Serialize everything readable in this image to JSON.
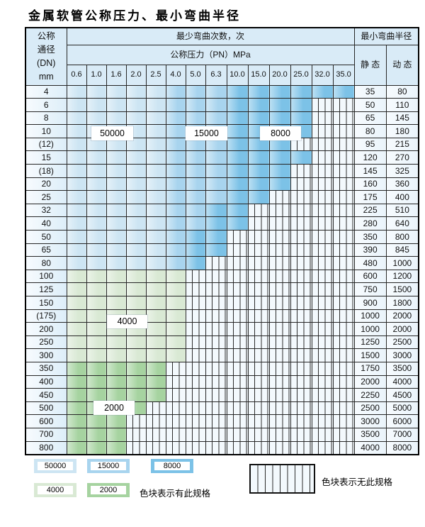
{
  "title": "金属软管公称压力、最小弯曲半径",
  "colors": {
    "c50": "#cde5f3",
    "c15": "#a8d4ee",
    "c8": "#7cc2e7",
    "c4": "#d9e9d4",
    "c2": "#a6d3a0",
    "hatch_bg": "#f3f9fd",
    "hatch_line": "#2b2b2b",
    "header_bg": "#d9ebf7"
  },
  "table": {
    "header": {
      "dn_lines": [
        "公称",
        "通径",
        "(DN)",
        "mm"
      ],
      "cycles_title": "最少弯曲次数，次",
      "pressure_title": "公称压力（PN）MPa",
      "pressures": [
        "0.6",
        "1.0",
        "1.6",
        "2.0",
        "2.5",
        "4.0",
        "5.0",
        "6.3",
        "10.0",
        "15.0",
        "20.0",
        "25.0",
        "32.0",
        "35.0"
      ],
      "radius_title": "最小弯曲半径",
      "static_label": "静 态",
      "dynamic_label": "动 态"
    },
    "band_meaning": {
      "50": "最少弯曲次数 50000 次",
      "15": "最少弯曲次数 15000 次",
      "8": "最少弯曲次数 8000 次",
      "4": "最少弯曲次数 4000 次",
      "2": "最少弯曲次数 2000 次",
      "x": "无此规格"
    },
    "rows": [
      {
        "dn": "4",
        "static": "35",
        "dynamic": "80",
        "bands": [
          "50",
          "50",
          "50",
          "50",
          "50",
          "15",
          "15",
          "15",
          "8",
          "8",
          "8",
          "8",
          "8",
          "8"
        ]
      },
      {
        "dn": "6",
        "static": "50",
        "dynamic": "110",
        "bands": [
          "50",
          "50",
          "50",
          "50",
          "50",
          "15",
          "15",
          "15",
          "8",
          "8",
          "8",
          "8",
          "x",
          "x"
        ]
      },
      {
        "dn": "8",
        "static": "65",
        "dynamic": "145",
        "bands": [
          "50",
          "50",
          "50",
          "50",
          "50",
          "15",
          "15",
          "15",
          "8",
          "8",
          "8",
          "8",
          "x",
          "x"
        ]
      },
      {
        "dn": "10",
        "static": "80",
        "dynamic": "180",
        "bands": [
          "50",
          "50",
          "50",
          "50",
          "50",
          "15",
          "15",
          "15",
          "8",
          "8",
          "8",
          "8",
          "x",
          "x"
        ]
      },
      {
        "dn": "(12)",
        "static": "95",
        "dynamic": "215",
        "bands": [
          "50",
          "50",
          "50",
          "50",
          "50",
          "15",
          "15",
          "15",
          "8",
          "8",
          "8",
          "x",
          "x",
          "x"
        ]
      },
      {
        "dn": "15",
        "static": "120",
        "dynamic": "270",
        "bands": [
          "50",
          "50",
          "50",
          "50",
          "50",
          "15",
          "15",
          "15",
          "8",
          "8",
          "8",
          "8",
          "x",
          "x"
        ]
      },
      {
        "dn": "(18)",
        "static": "145",
        "dynamic": "325",
        "bands": [
          "50",
          "50",
          "50",
          "50",
          "50",
          "15",
          "15",
          "15",
          "8",
          "8",
          "8",
          "x",
          "x",
          "x"
        ]
      },
      {
        "dn": "20",
        "static": "160",
        "dynamic": "360",
        "bands": [
          "50",
          "50",
          "50",
          "50",
          "50",
          "15",
          "15",
          "15",
          "8",
          "8",
          "8",
          "x",
          "x",
          "x"
        ]
      },
      {
        "dn": "25",
        "static": "175",
        "dynamic": "400",
        "bands": [
          "50",
          "50",
          "50",
          "50",
          "50",
          "15",
          "15",
          "15",
          "8",
          "8",
          "x",
          "x",
          "x",
          "x"
        ]
      },
      {
        "dn": "32",
        "static": "225",
        "dynamic": "510",
        "bands": [
          "50",
          "50",
          "50",
          "50",
          "50",
          "15",
          "15",
          "8",
          "8",
          "x",
          "x",
          "x",
          "x",
          "x"
        ]
      },
      {
        "dn": "40",
        "static": "280",
        "dynamic": "640",
        "bands": [
          "50",
          "50",
          "50",
          "50",
          "50",
          "15",
          "15",
          "8",
          "8",
          "x",
          "x",
          "x",
          "x",
          "x"
        ]
      },
      {
        "dn": "50",
        "static": "350",
        "dynamic": "800",
        "bands": [
          "50",
          "50",
          "50",
          "50",
          "50",
          "15",
          "8",
          "8",
          "x",
          "x",
          "x",
          "x",
          "x",
          "x"
        ]
      },
      {
        "dn": "65",
        "static": "390",
        "dynamic": "845",
        "bands": [
          "50",
          "50",
          "50",
          "50",
          "50",
          "15",
          "8",
          "8",
          "x",
          "x",
          "x",
          "x",
          "x",
          "x"
        ]
      },
      {
        "dn": "80",
        "static": "480",
        "dynamic": "1000",
        "bands": [
          "50",
          "50",
          "50",
          "50",
          "50",
          "15",
          "8",
          "x",
          "x",
          "x",
          "x",
          "x",
          "x",
          "x"
        ]
      },
      {
        "dn": "100",
        "static": "600",
        "dynamic": "1200",
        "bands": [
          "4",
          "4",
          "4",
          "4",
          "4",
          "4",
          "x",
          "x",
          "x",
          "x",
          "x",
          "x",
          "x",
          "x"
        ]
      },
      {
        "dn": "125",
        "static": "750",
        "dynamic": "1500",
        "bands": [
          "4",
          "4",
          "4",
          "4",
          "4",
          "4",
          "x",
          "x",
          "x",
          "x",
          "x",
          "x",
          "x",
          "x"
        ]
      },
      {
        "dn": "150",
        "static": "900",
        "dynamic": "1800",
        "bands": [
          "4",
          "4",
          "4",
          "4",
          "4",
          "4",
          "x",
          "x",
          "x",
          "x",
          "x",
          "x",
          "x",
          "x"
        ]
      },
      {
        "dn": "(175)",
        "static": "1000",
        "dynamic": "2000",
        "bands": [
          "4",
          "4",
          "4",
          "4",
          "4",
          "4",
          "x",
          "x",
          "x",
          "x",
          "x",
          "x",
          "x",
          "x"
        ]
      },
      {
        "dn": "200",
        "static": "1000",
        "dynamic": "2000",
        "bands": [
          "4",
          "4",
          "4",
          "4",
          "4",
          "4",
          "x",
          "x",
          "x",
          "x",
          "x",
          "x",
          "x",
          "x"
        ]
      },
      {
        "dn": "250",
        "static": "1250",
        "dynamic": "2500",
        "bands": [
          "4",
          "4",
          "4",
          "4",
          "4",
          "4",
          "x",
          "x",
          "x",
          "x",
          "x",
          "x",
          "x",
          "x"
        ]
      },
      {
        "dn": "300",
        "static": "1500",
        "dynamic": "3000",
        "bands": [
          "4",
          "4",
          "4",
          "4",
          "4",
          "4",
          "x",
          "x",
          "x",
          "x",
          "x",
          "x",
          "x",
          "x"
        ]
      },
      {
        "dn": "350",
        "static": "1750",
        "dynamic": "3500",
        "bands": [
          "2",
          "2",
          "2",
          "2",
          "2",
          "x",
          "x",
          "x",
          "x",
          "x",
          "x",
          "x",
          "x",
          "x"
        ]
      },
      {
        "dn": "400",
        "static": "2000",
        "dynamic": "4000",
        "bands": [
          "2",
          "2",
          "2",
          "2",
          "2",
          "x",
          "x",
          "x",
          "x",
          "x",
          "x",
          "x",
          "x",
          "x"
        ]
      },
      {
        "dn": "450",
        "static": "2250",
        "dynamic": "4500",
        "bands": [
          "2",
          "2",
          "2",
          "2",
          "2",
          "x",
          "x",
          "x",
          "x",
          "x",
          "x",
          "x",
          "x",
          "x"
        ]
      },
      {
        "dn": "500",
        "static": "2500",
        "dynamic": "5000",
        "bands": [
          "2",
          "2",
          "2",
          "2",
          "x",
          "x",
          "x",
          "x",
          "x",
          "x",
          "x",
          "x",
          "x",
          "x"
        ]
      },
      {
        "dn": "600",
        "static": "3000",
        "dynamic": "6000",
        "bands": [
          "2",
          "2",
          "2",
          "x",
          "x",
          "x",
          "x",
          "x",
          "x",
          "x",
          "x",
          "x",
          "x",
          "x"
        ]
      },
      {
        "dn": "700",
        "static": "3500",
        "dynamic": "7000",
        "bands": [
          "2",
          "2",
          "2",
          "x",
          "x",
          "x",
          "x",
          "x",
          "x",
          "x",
          "x",
          "x",
          "x",
          "x"
        ]
      },
      {
        "dn": "800",
        "static": "4000",
        "dynamic": "8000",
        "bands": [
          "2",
          "2",
          "2",
          "x",
          "x",
          "x",
          "x",
          "x",
          "x",
          "x",
          "x",
          "x",
          "x",
          "x"
        ]
      }
    ]
  },
  "overlays": [
    {
      "text": "50000"
    },
    {
      "text": "15000"
    },
    {
      "text": "8000"
    },
    {
      "text": "4000"
    },
    {
      "text": "2000"
    }
  ],
  "legend": {
    "items": [
      {
        "label": "50000",
        "color": "#cde5f3"
      },
      {
        "label": "15000",
        "color": "#a8d4ee"
      },
      {
        "label": "8000",
        "color": "#7cc2e7"
      },
      {
        "label": "4000",
        "color": "#d9e9d4"
      },
      {
        "label": "2000",
        "color": "#a6d3a0"
      }
    ],
    "has_spec_text": "色块表示有此规格",
    "no_spec_text": "色块表示无此规格"
  }
}
